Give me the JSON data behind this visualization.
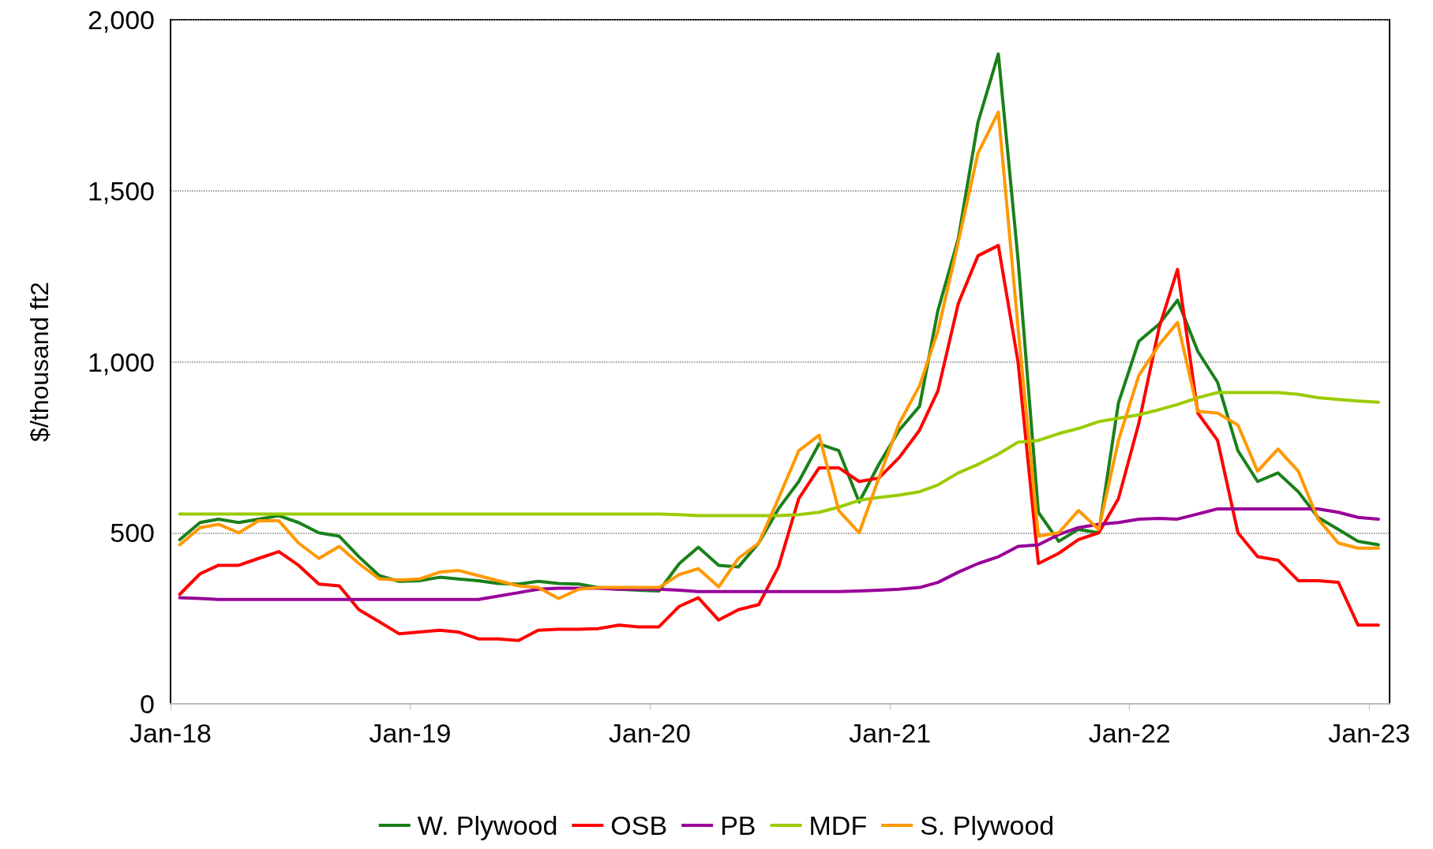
{
  "chart_data": {
    "type": "line",
    "ylabel": "$/thousand ft2",
    "x": [
      "2018-01-15",
      "2018-02-15",
      "2018-03-15",
      "2018-04-15",
      "2018-05-15",
      "2018-06-15",
      "2018-07-15",
      "2018-08-15",
      "2018-09-15",
      "2018-10-15",
      "2018-11-15",
      "2018-12-15",
      "2019-01-15",
      "2019-02-15",
      "2019-03-15",
      "2019-04-15",
      "2019-05-15",
      "2019-06-15",
      "2019-07-15",
      "2019-08-15",
      "2019-09-15",
      "2019-10-15",
      "2019-11-15",
      "2019-12-15",
      "2020-01-15",
      "2020-02-15",
      "2020-03-15",
      "2020-04-15",
      "2020-05-15",
      "2020-06-15",
      "2020-07-15",
      "2020-08-15",
      "2020-09-15",
      "2020-10-15",
      "2020-11-15",
      "2020-12-15",
      "2021-01-15",
      "2021-02-15",
      "2021-03-15",
      "2021-04-15",
      "2021-05-15",
      "2021-06-15",
      "2021-07-15",
      "2021-08-15",
      "2021-09-15",
      "2021-10-15",
      "2021-11-15",
      "2021-12-15",
      "2022-01-15",
      "2022-02-15",
      "2022-03-15",
      "2022-04-15",
      "2022-05-15",
      "2022-06-15",
      "2022-07-15",
      "2022-08-15",
      "2022-09-15",
      "2022-10-15",
      "2022-11-15",
      "2022-12-15",
      "2023-01-15"
    ],
    "xlim": [
      "2018-01-01",
      "2023-02-01"
    ],
    "xticks": [
      {
        "value": "2018-01-01",
        "label": "Jan-18"
      },
      {
        "value": "2019-01-01",
        "label": "Jan-19"
      },
      {
        "value": "2020-01-01",
        "label": "Jan-20"
      },
      {
        "value": "2021-01-01",
        "label": "Jan-21"
      },
      {
        "value": "2022-01-01",
        "label": "Jan-22"
      },
      {
        "value": "2023-01-01",
        "label": "Jan-23"
      }
    ],
    "ylim": [
      0,
      2000
    ],
    "yticks": [
      0,
      500,
      {
        "value": 1000,
        "label": "1,000"
      },
      {
        "value": 1500,
        "label": "1,500"
      },
      {
        "value": 2000,
        "label": "2,000"
      }
    ],
    "grid": "y",
    "legend": "bottom",
    "line_style": "solid",
    "marker": "none",
    "series": [
      {
        "name": "W. Plywood",
        "color": "#1a801a",
        "values": [
          480,
          530,
          540,
          530,
          540,
          550,
          530,
          500,
          490,
          430,
          375,
          358,
          360,
          370,
          365,
          360,
          352,
          350,
          358,
          352,
          350,
          340,
          335,
          332,
          330,
          410,
          458,
          405,
          400,
          470,
          570,
          650,
          760,
          740,
          590,
          700,
          800,
          870,
          1150,
          1360,
          1700,
          1900,
          1300,
          560,
          475,
          510,
          500,
          880,
          1060,
          1110,
          1180,
          1030,
          940,
          740,
          650,
          675,
          620,
          545,
          510,
          475,
          465
        ]
      },
      {
        "name": "OSB",
        "color": "#ff0000",
        "values": [
          320,
          380,
          405,
          405,
          425,
          445,
          405,
          350,
          345,
          275,
          240,
          205,
          210,
          215,
          210,
          190,
          190,
          185,
          215,
          218,
          218,
          220,
          230,
          225,
          225,
          285,
          310,
          245,
          275,
          290,
          400,
          600,
          690,
          690,
          650,
          660,
          720,
          800,
          915,
          1170,
          1310,
          1340,
          1000,
          410,
          440,
          480,
          500,
          600,
          820,
          1100,
          1270,
          850,
          770,
          500,
          430,
          420,
          360,
          360,
          355,
          230,
          230
        ]
      },
      {
        "name": "PB",
        "color": "#990099",
        "values": [
          310,
          308,
          305,
          305,
          305,
          305,
          305,
          305,
          305,
          305,
          305,
          305,
          305,
          305,
          305,
          305,
          315,
          325,
          335,
          338,
          338,
          338,
          335,
          335,
          335,
          332,
          328,
          328,
          328,
          328,
          328,
          328,
          328,
          328,
          330,
          332,
          335,
          340,
          355,
          385,
          410,
          430,
          460,
          465,
          495,
          515,
          525,
          530,
          540,
          542,
          540,
          555,
          570,
          570,
          570,
          570,
          570,
          570,
          560,
          545,
          540
        ]
      },
      {
        "name": "MDF",
        "color": "#99cc00",
        "values": [
          555,
          555,
          555,
          555,
          555,
          555,
          555,
          555,
          555,
          555,
          555,
          555,
          555,
          555,
          555,
          555,
          555,
          555,
          555,
          555,
          555,
          555,
          555,
          555,
          555,
          553,
          550,
          550,
          550,
          550,
          550,
          553,
          560,
          575,
          595,
          603,
          610,
          620,
          640,
          675,
          700,
          730,
          765,
          770,
          790,
          805,
          825,
          835,
          845,
          860,
          875,
          895,
          910,
          910,
          910,
          910,
          905,
          895,
          890,
          885,
          882
        ]
      },
      {
        "name": "S. Plywood",
        "color": "#ff9900",
        "values": [
          465,
          515,
          525,
          500,
          535,
          535,
          470,
          425,
          460,
          410,
          365,
          362,
          365,
          385,
          390,
          375,
          360,
          345,
          340,
          308,
          335,
          340,
          340,
          340,
          340,
          378,
          395,
          342,
          425,
          470,
          600,
          740,
          785,
          565,
          500,
          660,
          820,
          930,
          1090,
          1350,
          1610,
          1730,
          1100,
          490,
          500,
          565,
          510,
          770,
          960,
          1050,
          1115,
          855,
          850,
          815,
          680,
          745,
          680,
          540,
          470,
          455,
          455
        ]
      }
    ]
  }
}
